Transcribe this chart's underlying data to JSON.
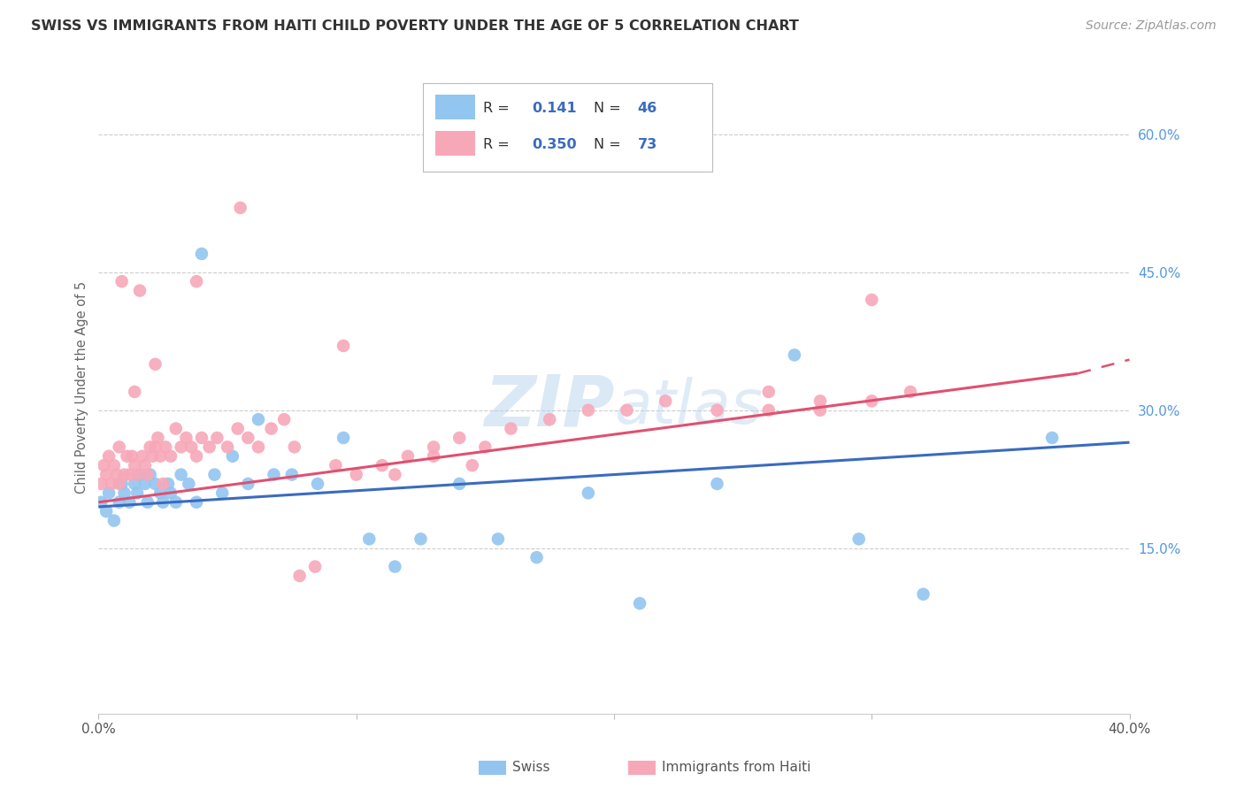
{
  "title": "SWISS VS IMMIGRANTS FROM HAITI CHILD POVERTY UNDER THE AGE OF 5 CORRELATION CHART",
  "source": "Source: ZipAtlas.com",
  "ylabel": "Child Poverty Under the Age of 5",
  "ytick_labels": [
    "15.0%",
    "30.0%",
    "45.0%",
    "60.0%"
  ],
  "ytick_values": [
    0.15,
    0.3,
    0.45,
    0.6
  ],
  "xlim": [
    0.0,
    0.4
  ],
  "ylim": [
    -0.03,
    0.68
  ],
  "legend_R_swiss": "0.141",
  "legend_N_swiss": "46",
  "legend_R_haiti": "0.350",
  "legend_N_haiti": "73",
  "swiss_color": "#92c5f0",
  "haiti_color": "#f7a8b8",
  "swiss_line_color": "#3a6bbf",
  "haiti_line_color": "#e05070",
  "watermark_zip": "ZIP",
  "watermark_atlas": "atlas",
  "background_color": "#ffffff",
  "grid_color": "#cccccc",
  "swiss_points_x": [
    0.001,
    0.003,
    0.004,
    0.006,
    0.008,
    0.009,
    0.01,
    0.012,
    0.014,
    0.015,
    0.016,
    0.018,
    0.019,
    0.02,
    0.022,
    0.024,
    0.025,
    0.027,
    0.028,
    0.03,
    0.032,
    0.035,
    0.038,
    0.04,
    0.045,
    0.048,
    0.052,
    0.058,
    0.062,
    0.068,
    0.075,
    0.085,
    0.095,
    0.105,
    0.115,
    0.125,
    0.14,
    0.155,
    0.17,
    0.19,
    0.21,
    0.24,
    0.27,
    0.295,
    0.32,
    0.37
  ],
  "swiss_points_y": [
    0.2,
    0.19,
    0.21,
    0.18,
    0.2,
    0.22,
    0.21,
    0.2,
    0.22,
    0.21,
    0.23,
    0.22,
    0.2,
    0.23,
    0.22,
    0.21,
    0.2,
    0.22,
    0.21,
    0.2,
    0.23,
    0.22,
    0.2,
    0.47,
    0.23,
    0.21,
    0.25,
    0.22,
    0.29,
    0.23,
    0.23,
    0.22,
    0.27,
    0.16,
    0.13,
    0.16,
    0.22,
    0.16,
    0.14,
    0.21,
    0.09,
    0.22,
    0.36,
    0.16,
    0.1,
    0.27
  ],
  "haiti_points_x": [
    0.001,
    0.002,
    0.003,
    0.004,
    0.005,
    0.006,
    0.007,
    0.008,
    0.009,
    0.01,
    0.011,
    0.012,
    0.013,
    0.014,
    0.015,
    0.016,
    0.017,
    0.018,
    0.019,
    0.02,
    0.021,
    0.022,
    0.023,
    0.024,
    0.025,
    0.026,
    0.028,
    0.03,
    0.032,
    0.034,
    0.036,
    0.038,
    0.04,
    0.043,
    0.046,
    0.05,
    0.054,
    0.058,
    0.062,
    0.067,
    0.072,
    0.078,
    0.084,
    0.092,
    0.1,
    0.11,
    0.12,
    0.13,
    0.14,
    0.15,
    0.16,
    0.175,
    0.19,
    0.205,
    0.22,
    0.24,
    0.26,
    0.28,
    0.3,
    0.315,
    0.26,
    0.28,
    0.3,
    0.13,
    0.145,
    0.115,
    0.095,
    0.076,
    0.055,
    0.038,
    0.022,
    0.014,
    0.008
  ],
  "haiti_points_y": [
    0.22,
    0.24,
    0.23,
    0.25,
    0.22,
    0.24,
    0.23,
    0.22,
    0.44,
    0.23,
    0.25,
    0.23,
    0.25,
    0.24,
    0.23,
    0.43,
    0.25,
    0.24,
    0.23,
    0.26,
    0.25,
    0.26,
    0.27,
    0.25,
    0.22,
    0.26,
    0.25,
    0.28,
    0.26,
    0.27,
    0.26,
    0.25,
    0.27,
    0.26,
    0.27,
    0.26,
    0.28,
    0.27,
    0.26,
    0.28,
    0.29,
    0.12,
    0.13,
    0.24,
    0.23,
    0.24,
    0.25,
    0.26,
    0.27,
    0.26,
    0.28,
    0.29,
    0.3,
    0.3,
    0.31,
    0.3,
    0.32,
    0.31,
    0.42,
    0.32,
    0.3,
    0.3,
    0.31,
    0.25,
    0.24,
    0.23,
    0.37,
    0.26,
    0.52,
    0.44,
    0.35,
    0.32,
    0.26
  ]
}
